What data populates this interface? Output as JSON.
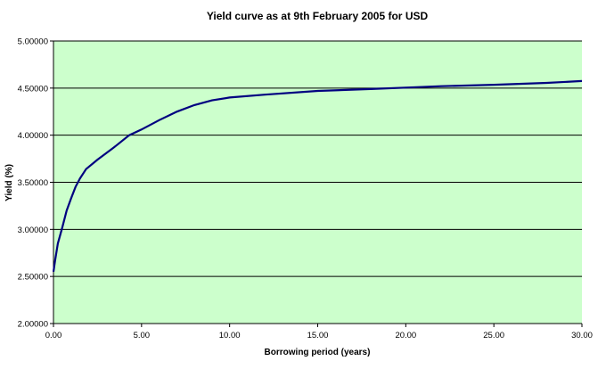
{
  "chart_data": {
    "type": "line",
    "title": "Yield curve as at 9th February 2005 for USD",
    "xlabel": "Borrowing period (years)",
    "ylabel": "Yield (%)",
    "xlim": [
      0,
      30
    ],
    "ylim": [
      2.0,
      5.0
    ],
    "xticks": [
      "0.00",
      "5.00",
      "10.00",
      "15.00",
      "20.00",
      "25.00",
      "30.00"
    ],
    "yticks": [
      "2.00000",
      "2.50000",
      "3.00000",
      "3.50000",
      "4.00000",
      "4.50000",
      "5.00000"
    ],
    "grid": "horizontal",
    "legend": "none",
    "colors": {
      "plot_background": "#ccffcc",
      "line": "#000080",
      "gridline": "#000000"
    },
    "series": [
      {
        "x": [
          0,
          0.1,
          0.25,
          0.5,
          0.75,
          1.0,
          1.25,
          1.5,
          1.85,
          2.5,
          3.0,
          3.5,
          4.3,
          5.0,
          6.0,
          7.0,
          8.0,
          9.0,
          10.0,
          12.0,
          15.0,
          18.0,
          20.0,
          22.0,
          25.0,
          28.0,
          30.0
        ],
        "y": [
          2.55,
          2.68,
          2.85,
          3.02,
          3.2,
          3.33,
          3.45,
          3.54,
          3.64,
          3.74,
          3.81,
          3.88,
          4.0,
          4.06,
          4.16,
          4.25,
          4.32,
          4.37,
          4.4,
          4.43,
          4.47,
          4.49,
          4.505,
          4.52,
          4.535,
          4.555,
          4.575
        ]
      }
    ]
  }
}
